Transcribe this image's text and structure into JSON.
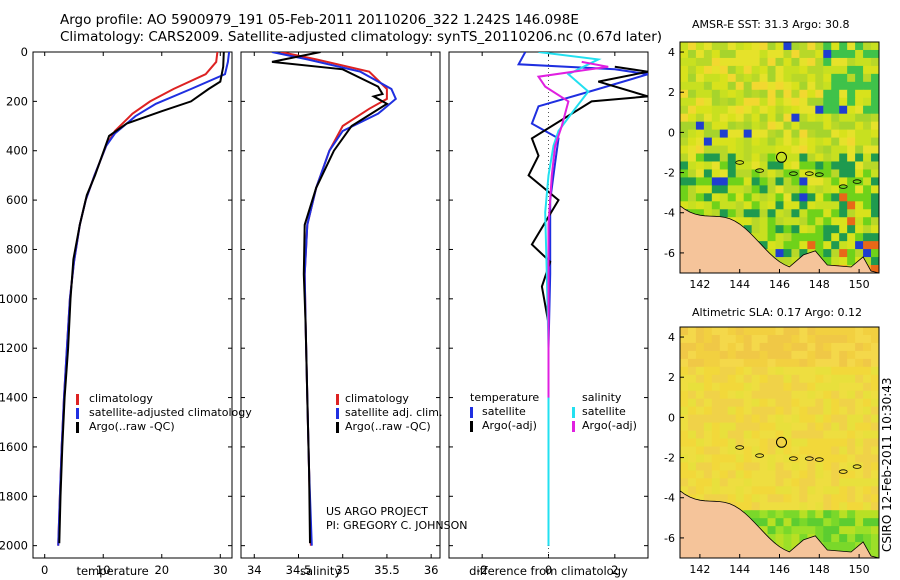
{
  "header": {
    "line1": "Argo profile: AO 5900979_191 05-Feb-2011 20110206_322 1.242S 146.098E",
    "line2": "Climatology: CARS2009. Satellite-adjusted climatology: synTS_20110206.nc (0.67d later)"
  },
  "credit": {
    "line1": "US ARGO PROJECT",
    "line2": "PI: GREGORY C. JOHNSON"
  },
  "side_stamp": "CSIRO 12-Feb-2011 10:30:43",
  "colors": {
    "climatology": "#dd2222",
    "satellite": "#1f2fe0",
    "argo": "#000000",
    "sat_salinity": "#22e0f0",
    "argo_salinity": "#e020e0",
    "land": "#f5c49a"
  },
  "chart_data": [
    {
      "type": "line",
      "name": "temperature-panel",
      "xlabel": "temperature",
      "xlim": [
        -2,
        32
      ],
      "ylim": [
        0,
        2050
      ],
      "y_reversed": true,
      "xticks": [
        0,
        10,
        20,
        30
      ],
      "yticks": [
        0,
        200,
        400,
        600,
        800,
        1000,
        1200,
        1400,
        1600,
        1800,
        2000
      ],
      "legend": [
        {
          "label": "climatology",
          "color": "#dd2222"
        },
        {
          "label": "satellite-adjusted climatology",
          "color": "#1f2fe0"
        },
        {
          "label": "Argo(..raw -QC)",
          "color": "#000000"
        }
      ],
      "series": [
        {
          "name": "climatology",
          "color": "#dd2222",
          "points": [
            [
              29.5,
              0
            ],
            [
              29.3,
              40
            ],
            [
              27.5,
              90
            ],
            [
              22,
              150
            ],
            [
              18,
              200
            ],
            [
              15,
              250
            ],
            [
              12,
              320
            ],
            [
              10.5,
              380
            ],
            [
              8.5,
              500
            ],
            [
              7,
              600
            ],
            [
              6,
              700
            ],
            [
              5,
              850
            ],
            [
              4.3,
              1000
            ],
            [
              3.8,
              1200
            ],
            [
              3.3,
              1400
            ],
            [
              2.9,
              1600
            ],
            [
              2.6,
              1800
            ],
            [
              2.3,
              2000
            ]
          ]
        },
        {
          "name": "satellite-adjusted climatology",
          "color": "#1f2fe0",
          "points": [
            [
              31.5,
              0
            ],
            [
              31.3,
              40
            ],
            [
              30.8,
              90
            ],
            [
              25,
              150
            ],
            [
              19,
              210
            ],
            [
              15.5,
              260
            ],
            [
              12,
              330
            ],
            [
              10.5,
              380
            ],
            [
              8.5,
              500
            ],
            [
              7,
              600
            ],
            [
              6,
              700
            ],
            [
              5,
              850
            ],
            [
              4.3,
              1000
            ],
            [
              3.8,
              1200
            ],
            [
              3.3,
              1400
            ],
            [
              2.9,
              1600
            ],
            [
              2.6,
              1800
            ],
            [
              2.3,
              2000
            ]
          ]
        },
        {
          "name": "Argo(..raw -QC)",
          "color": "#000000",
          "points": [
            [
              30.6,
              0
            ],
            [
              30.5,
              60
            ],
            [
              30,
              120
            ],
            [
              28,
              150
            ],
            [
              25,
              200
            ],
            [
              20,
              240
            ],
            [
              14,
              290
            ],
            [
              11,
              340
            ],
            [
              8.6,
              500
            ],
            [
              7.2,
              580
            ],
            [
              6,
              700
            ],
            [
              4.9,
              840
            ],
            [
              4.4,
              1000
            ],
            [
              4,
              1200
            ],
            [
              3.4,
              1400
            ],
            [
              3,
              1600
            ],
            [
              2.7,
              1800
            ],
            [
              2.5,
              1990
            ]
          ]
        }
      ]
    },
    {
      "type": "line",
      "name": "salinity-panel",
      "xlabel": "salinity",
      "xlim": [
        33.85,
        36.1
      ],
      "ylim": [
        0,
        2050
      ],
      "y_reversed": true,
      "xticks": [
        34,
        34.5,
        35,
        35.5,
        36
      ],
      "yticks": [
        0,
        200,
        400,
        600,
        800,
        1000,
        1200,
        1400,
        1600,
        1800,
        2000
      ],
      "legend": [
        {
          "label": "climatology",
          "color": "#dd2222"
        },
        {
          "label": "satellite adj. clim.",
          "color": "#1f2fe0"
        },
        {
          "label": "Argo(..raw -QC)",
          "color": "#000000"
        }
      ],
      "series": [
        {
          "name": "climatology",
          "color": "#dd2222",
          "points": [
            [
              34.3,
              0
            ],
            [
              34.7,
              30
            ],
            [
              35.3,
              80
            ],
            [
              35.5,
              150
            ],
            [
              35.5,
              190
            ],
            [
              35.3,
              230
            ],
            [
              35.0,
              300
            ],
            [
              34.85,
              400
            ],
            [
              34.7,
              550
            ],
            [
              34.6,
              700
            ],
            [
              34.57,
              900
            ],
            [
              34.58,
              1100
            ],
            [
              34.6,
              1400
            ],
            [
              34.62,
              1700
            ],
            [
              34.64,
              2000
            ]
          ]
        },
        {
          "name": "satellite adj. clim.",
          "color": "#1f2fe0",
          "points": [
            [
              34.2,
              0
            ],
            [
              34.6,
              30
            ],
            [
              35.2,
              80
            ],
            [
              35.55,
              150
            ],
            [
              35.6,
              190
            ],
            [
              35.4,
              250
            ],
            [
              35.0,
              320
            ],
            [
              34.85,
              400
            ],
            [
              34.7,
              550
            ],
            [
              34.6,
              700
            ],
            [
              34.57,
              900
            ],
            [
              34.58,
              1100
            ],
            [
              34.6,
              1400
            ],
            [
              34.62,
              1700
            ],
            [
              34.65,
              2000
            ]
          ]
        },
        {
          "name": "Argo(..raw -QC)",
          "color": "#000000",
          "points": [
            [
              34.75,
              0
            ],
            [
              34.2,
              40
            ],
            [
              35.0,
              70
            ],
            [
              35.4,
              140
            ],
            [
              35.45,
              170
            ],
            [
              35.35,
              180
            ],
            [
              35.5,
              210
            ],
            [
              35.1,
              300
            ],
            [
              34.9,
              400
            ],
            [
              34.7,
              550
            ],
            [
              34.57,
              700
            ],
            [
              34.56,
              900
            ],
            [
              34.58,
              1100
            ],
            [
              34.6,
              1400
            ],
            [
              34.62,
              1700
            ],
            [
              34.63,
              1990
            ]
          ]
        }
      ]
    },
    {
      "type": "line",
      "name": "difference-panel",
      "xlabel": "difference from climatology",
      "xlim": [
        -3,
        3
      ],
      "ylim": [
        0,
        2050
      ],
      "y_reversed": true,
      "xticks": [
        -2,
        0,
        2
      ],
      "yticks": [
        0,
        200,
        400,
        600,
        800,
        1000,
        1200,
        1400,
        1600,
        1800,
        2000
      ],
      "legend_left": {
        "title": "temperature",
        "entries": [
          {
            "label": "satellite",
            "color": "#1f2fe0"
          },
          {
            "label": "Argo(-adj)",
            "color": "#000000"
          }
        ]
      },
      "legend_right": {
        "title": "salinity",
        "entries": [
          {
            "label": "satellite",
            "color": "#22e0f0"
          },
          {
            "label": "Argo(-adj)",
            "color": "#e020e0"
          }
        ]
      },
      "series": [
        {
          "name": "temperature satellite",
          "color": "#1f2fe0",
          "points": [
            [
              -0.7,
              0
            ],
            [
              -0.9,
              50
            ],
            [
              2,
              70
            ],
            [
              3,
              90
            ],
            [
              1.5,
              150
            ],
            [
              -0.3,
              220
            ],
            [
              -0.5,
              290
            ],
            [
              0.3,
              350
            ],
            [
              0.2,
              450
            ],
            [
              0.05,
              600
            ],
            [
              0.05,
              900
            ],
            [
              0,
              1200
            ],
            [
              0,
              1600
            ],
            [
              0,
              2000
            ]
          ]
        },
        {
          "name": "temperature Argo(-adj)",
          "color": "#000000",
          "points": [
            [
              2,
              60
            ],
            [
              3,
              80
            ],
            [
              1.5,
              120
            ],
            [
              3,
              180
            ],
            [
              1.3,
              200
            ],
            [
              -0.5,
              350
            ],
            [
              -0.3,
              420
            ],
            [
              -0.6,
              500
            ],
            [
              0.3,
              600
            ],
            [
              -0.5,
              780
            ],
            [
              0.05,
              850
            ],
            [
              -0.2,
              950
            ],
            [
              0,
              1100
            ],
            [
              0,
              1400
            ],
            [
              0,
              1700
            ],
            [
              0,
              2000
            ]
          ]
        },
        {
          "name": "salinity satellite",
          "color": "#22e0f0",
          "points": [
            [
              -0.3,
              0
            ],
            [
              1.5,
              30
            ],
            [
              0.6,
              90
            ],
            [
              1.2,
              160
            ],
            [
              0.8,
              230
            ],
            [
              0.3,
              320
            ],
            [
              0.15,
              380
            ],
            [
              0,
              500
            ],
            [
              -0.1,
              650
            ],
            [
              -0.05,
              900
            ],
            [
              0,
              1200
            ],
            [
              0,
              1600
            ],
            [
              0,
              2000
            ]
          ]
        },
        {
          "name": "salinity Argo(-adj)",
          "color": "#e020e0",
          "points": [
            [
              1,
              40
            ],
            [
              1.8,
              60
            ],
            [
              1,
              75
            ],
            [
              -0.3,
              100
            ],
            [
              -0.1,
              140
            ],
            [
              0.6,
              200
            ],
            [
              0.4,
              300
            ],
            [
              0.2,
              380
            ],
            [
              0.1,
              500
            ],
            [
              0,
              700
            ],
            [
              0,
              1000
            ],
            [
              0,
              1400
            ]
          ]
        }
      ]
    },
    {
      "type": "heatmap",
      "name": "amsr-map",
      "title": "AMSR-E SST: 31.3 Argo: 30.8",
      "xlim": [
        141,
        151
      ],
      "ylim": [
        -7,
        4.5
      ],
      "xticks": [
        142,
        144,
        146,
        148,
        150
      ],
      "yticks": [
        4,
        2,
        0,
        -2,
        -4,
        -6
      ],
      "marker": {
        "lon": 146.1,
        "lat": -1.24
      }
    },
    {
      "type": "heatmap",
      "name": "sla-map",
      "title": "Altimetric SLA: 0.17 Argo: 0.12",
      "xlim": [
        141,
        151
      ],
      "ylim": [
        -7,
        4.5
      ],
      "xticks": [
        142,
        144,
        146,
        148,
        150
      ],
      "yticks": [
        4,
        2,
        0,
        -2,
        -4,
        -6
      ],
      "marker": {
        "lon": 146.1,
        "lat": -1.24
      }
    }
  ]
}
